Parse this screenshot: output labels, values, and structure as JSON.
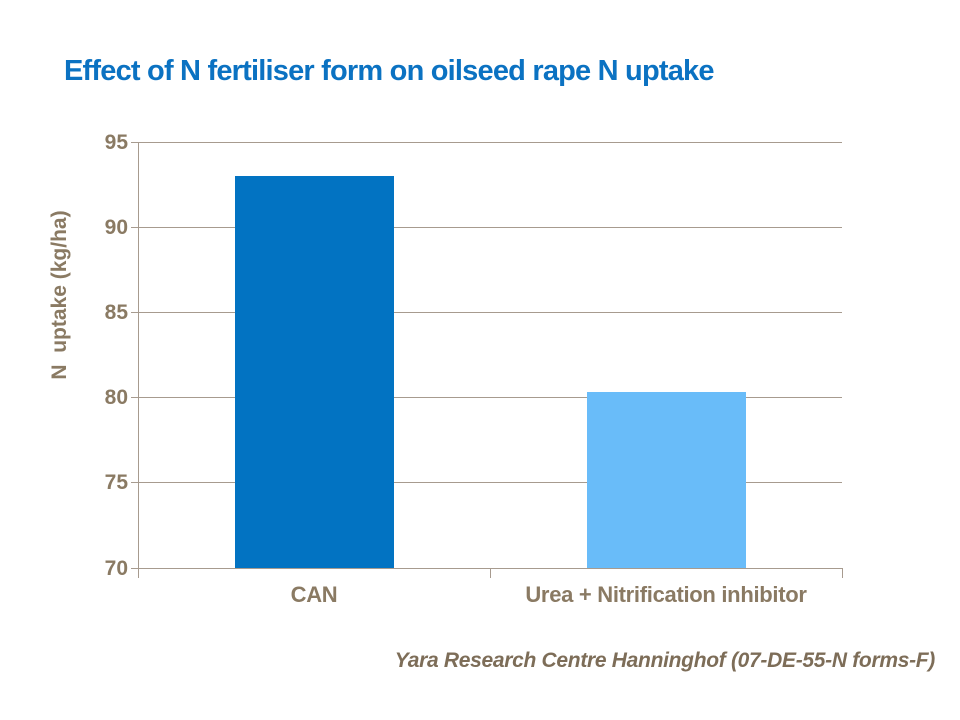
{
  "title": "Effect of N fertiliser form on oilseed rape N uptake",
  "footer": "Yara Research Centre Hanninghof (07-DE-55-N forms-F)",
  "colors": {
    "title": "#0B72C2",
    "axis_text": "#8A7A63",
    "gridline": "#A79B8F",
    "footer_text": "#7D6D58"
  },
  "chart_data": {
    "type": "bar",
    "title": "Effect of N fertiliser form on oilseed rape N uptake",
    "categories": [
      "CAN",
      "Urea + Nitrification inhibitor"
    ],
    "values": [
      93,
      80.3
    ],
    "bar_colors": [
      "#0273C2",
      "#69BCF9"
    ],
    "xlabel": "",
    "ylabel": "N  uptake (kg/ha)",
    "ylim": [
      70,
      95
    ],
    "y_ticks": [
      70,
      75,
      80,
      85,
      90,
      95
    ],
    "grid": "horizontal",
    "legend": "none",
    "source": "Yara Research Centre Hanninghof (07-DE-55-N forms-F)"
  }
}
